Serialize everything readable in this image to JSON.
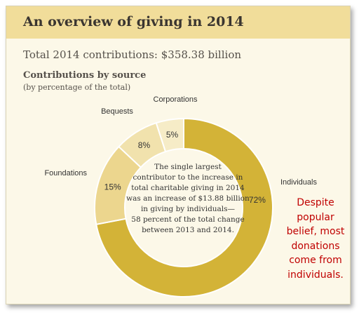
{
  "header": {
    "title": "An overview of giving in 2014"
  },
  "total": "Total 2014 contributions: $358.38 billion",
  "subtitle": "Contributions by source",
  "subtitle_note": "(by percentage of the total)",
  "center_text": [
    "The single largest",
    "contributor to the increase in",
    "total charitable giving in 2014",
    "was an increase of $13.88 billion",
    "in giving by individuals—",
    "58 percent of the total change",
    "between 2013 and 2014."
  ],
  "note_lines": [
    "Despite",
    "popular",
    "belief, most",
    "donations",
    "come from",
    "individuals."
  ],
  "colors": {
    "individuals": "#d3b337",
    "foundations": "#ecd68e",
    "bequests": "#f1e2ad",
    "corporations": "#f6ecc7",
    "note": "#c00000"
  },
  "chart_data": {
    "type": "pie",
    "title": "Contributions by source",
    "subtitle": "(by percentage of the total)",
    "categories": [
      "Individuals",
      "Foundations",
      "Bequests",
      "Corporations"
    ],
    "values": [
      72,
      15,
      8,
      5
    ],
    "value_labels": [
      "72%",
      "15%",
      "8%",
      "5%"
    ],
    "donut": true
  }
}
